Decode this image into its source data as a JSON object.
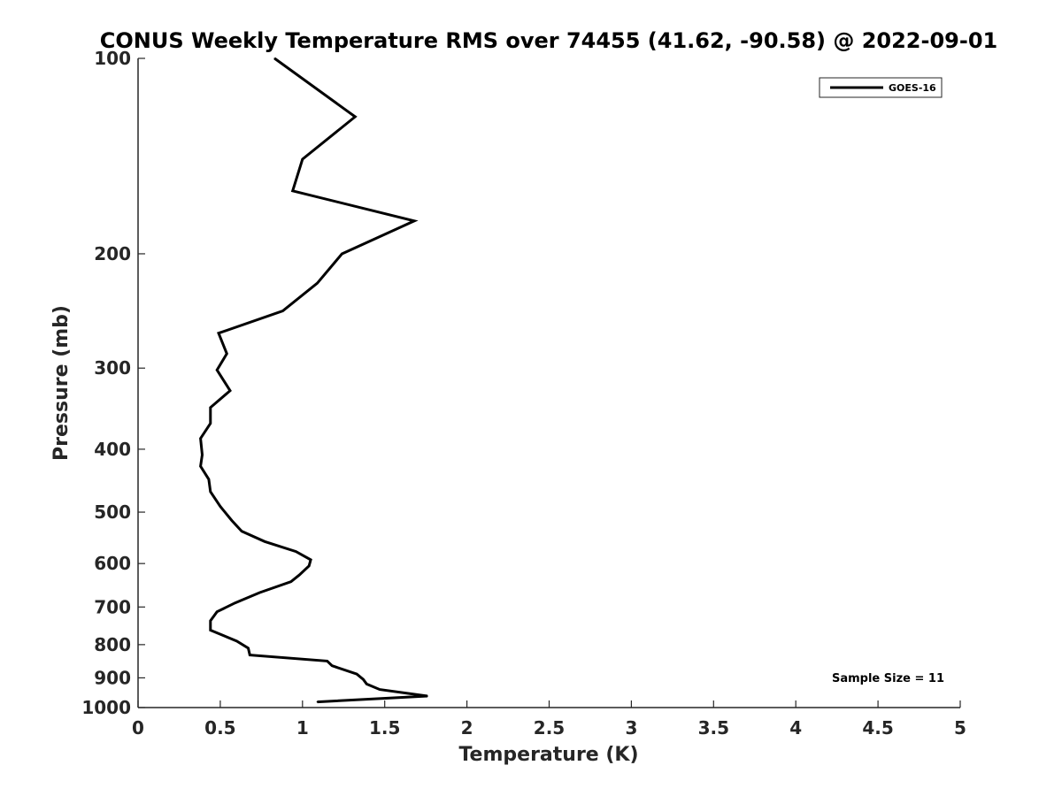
{
  "chart_data": {
    "type": "line",
    "title": "CONUS Weekly Temperature RMS over 74455 (41.62, -90.58) @ 2022-09-01",
    "xlabel": "Temperature (K)",
    "ylabel": "Pressure (mb)",
    "xlim": [
      0,
      5
    ],
    "ylim": [
      100,
      1000
    ],
    "y_scale": "log",
    "y_reversed": true,
    "grid": false,
    "legend_position": "top-right",
    "x_ticks": [
      "0",
      "0.5",
      "1",
      "1.5",
      "2",
      "2.5",
      "3",
      "3.5",
      "4",
      "4.5",
      "5"
    ],
    "y_ticks": [
      "100",
      "200",
      "300",
      "400",
      "500",
      "600",
      "700",
      "800",
      "900",
      "1000"
    ],
    "annotation": "Sample Size = 11",
    "series": [
      {
        "name": "GOES-16",
        "color": "#000000",
        "points": [
          [
            0.83,
            100
          ],
          [
            1.32,
            123
          ],
          [
            1.0,
            143
          ],
          [
            0.94,
            160
          ],
          [
            1.68,
            178
          ],
          [
            1.24,
            200
          ],
          [
            1.09,
            222
          ],
          [
            0.88,
            245
          ],
          [
            0.49,
            265
          ],
          [
            0.54,
            285
          ],
          [
            0.48,
            302
          ],
          [
            0.56,
            325
          ],
          [
            0.44,
            345
          ],
          [
            0.44,
            365
          ],
          [
            0.38,
            385
          ],
          [
            0.39,
            408
          ],
          [
            0.38,
            425
          ],
          [
            0.43,
            445
          ],
          [
            0.44,
            465
          ],
          [
            0.5,
            490
          ],
          [
            0.57,
            515
          ],
          [
            0.63,
            535
          ],
          [
            0.77,
            555
          ],
          [
            0.96,
            575
          ],
          [
            1.05,
            592
          ],
          [
            1.04,
            605
          ],
          [
            0.98,
            625
          ],
          [
            0.93,
            640
          ],
          [
            0.74,
            665
          ],
          [
            0.59,
            690
          ],
          [
            0.48,
            712
          ],
          [
            0.44,
            735
          ],
          [
            0.44,
            760
          ],
          [
            0.6,
            790
          ],
          [
            0.67,
            810
          ],
          [
            0.68,
            830
          ],
          [
            1.15,
            848
          ],
          [
            1.18,
            862
          ],
          [
            1.33,
            888
          ],
          [
            1.37,
            905
          ],
          [
            1.39,
            920
          ],
          [
            1.47,
            938
          ],
          [
            1.76,
            960
          ],
          [
            1.09,
            980
          ]
        ]
      }
    ]
  }
}
